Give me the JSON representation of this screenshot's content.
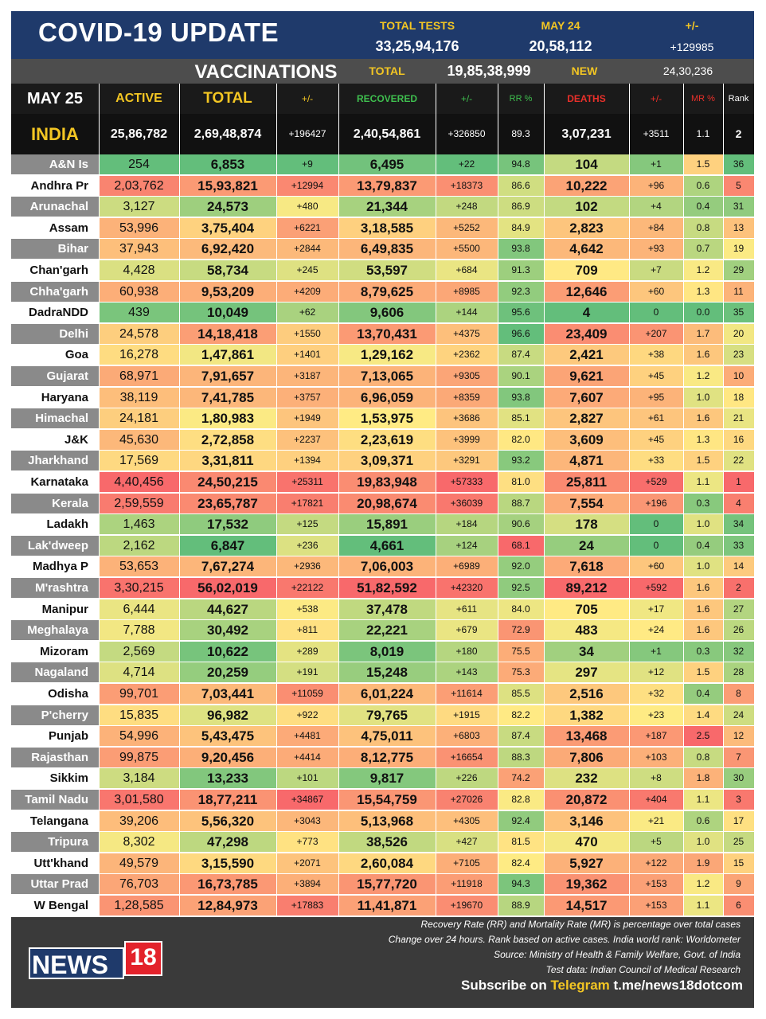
{
  "banner": {
    "title": "COVID-19 UPDATE",
    "total_tests_label": "TOTAL TESTS",
    "total_tests": "33,25,94,176",
    "day_label": "MAY 24",
    "day_value": "20,58,112",
    "change_label": "+/-",
    "change_value": "+129985"
  },
  "vaccinations": {
    "title": "VACCINATIONS",
    "total_label": "TOTAL",
    "total_value": "19,85,38,999",
    "new_label": "NEW",
    "new_value": "24,30,236"
  },
  "headers": {
    "date": "MAY 25",
    "active": "ACTIVE",
    "total": "TOTAL",
    "total_change": "+/-",
    "recovered": "RECOVERED",
    "recovered_change": "+/-",
    "rr": "RR %",
    "deaths": "DEATHS",
    "deaths_change": "+/-",
    "mr": "MR %",
    "rank": "Rank"
  },
  "india": {
    "name": "INDIA",
    "active": "25,86,782",
    "total": "2,69,48,874",
    "total_change": "+196427",
    "recovered": "2,40,54,861",
    "recovered_change": "+326850",
    "rr": "89.3",
    "deaths": "3,07,231",
    "deaths_change": "+3511",
    "mr": "1.1",
    "rank": "2"
  },
  "rows": [
    {
      "state": "A&N Is",
      "active": "254",
      "total": "6,853",
      "total_change": "+9",
      "recovered": "6,495",
      "recovered_change": "+22",
      "rr": "94.8",
      "deaths": "104",
      "deaths_change": "+1",
      "mr": "1.5",
      "rank": "36"
    },
    {
      "state": "Andhra Pr",
      "active": "2,03,762",
      "total": "15,93,821",
      "total_change": "+12994",
      "recovered": "13,79,837",
      "recovered_change": "+18373",
      "rr": "86.6",
      "deaths": "10,222",
      "deaths_change": "+96",
      "mr": "0.6",
      "rank": "5"
    },
    {
      "state": "Arunachal",
      "active": "3,127",
      "total": "24,573",
      "total_change": "+480",
      "recovered": "21,344",
      "recovered_change": "+248",
      "rr": "86.9",
      "deaths": "102",
      "deaths_change": "+4",
      "mr": "0.4",
      "rank": "31"
    },
    {
      "state": "Assam",
      "active": "53,996",
      "total": "3,75,404",
      "total_change": "+6221",
      "recovered": "3,18,585",
      "recovered_change": "+5252",
      "rr": "84.9",
      "deaths": "2,823",
      "deaths_change": "+84",
      "mr": "0.8",
      "rank": "13"
    },
    {
      "state": "Bihar",
      "active": "37,943",
      "total": "6,92,420",
      "total_change": "+2844",
      "recovered": "6,49,835",
      "recovered_change": "+5500",
      "rr": "93.8",
      "deaths": "4,642",
      "deaths_change": "+93",
      "mr": "0.7",
      "rank": "19"
    },
    {
      "state": "Chan'garh",
      "active": "4,428",
      "total": "58,734",
      "total_change": "+245",
      "recovered": "53,597",
      "recovered_change": "+684",
      "rr": "91.3",
      "deaths": "709",
      "deaths_change": "+7",
      "mr": "1.2",
      "rank": "29"
    },
    {
      "state": "Chha'garh",
      "active": "60,938",
      "total": "9,53,209",
      "total_change": "+4209",
      "recovered": "8,79,625",
      "recovered_change": "+8985",
      "rr": "92.3",
      "deaths": "12,646",
      "deaths_change": "+60",
      "mr": "1.3",
      "rank": "11"
    },
    {
      "state": "DadraNDD",
      "active": "439",
      "total": "10,049",
      "total_change": "+62",
      "recovered": "9,606",
      "recovered_change": "+144",
      "rr": "95.6",
      "deaths": "4",
      "deaths_change": "0",
      "mr": "0.0",
      "rank": "35"
    },
    {
      "state": "Delhi",
      "active": "24,578",
      "total": "14,18,418",
      "total_change": "+1550",
      "recovered": "13,70,431",
      "recovered_change": "+4375",
      "rr": "96.6",
      "deaths": "23,409",
      "deaths_change": "+207",
      "mr": "1.7",
      "rank": "20"
    },
    {
      "state": "Goa",
      "active": "16,278",
      "total": "1,47,861",
      "total_change": "+1401",
      "recovered": "1,29,162",
      "recovered_change": "+2362",
      "rr": "87.4",
      "deaths": "2,421",
      "deaths_change": "+38",
      "mr": "1.6",
      "rank": "23"
    },
    {
      "state": "Gujarat",
      "active": "68,971",
      "total": "7,91,657",
      "total_change": "+3187",
      "recovered": "7,13,065",
      "recovered_change": "+9305",
      "rr": "90.1",
      "deaths": "9,621",
      "deaths_change": "+45",
      "mr": "1.2",
      "rank": "10"
    },
    {
      "state": "Haryana",
      "active": "38,119",
      "total": "7,41,785",
      "total_change": "+3757",
      "recovered": "6,96,059",
      "recovered_change": "+8359",
      "rr": "93.8",
      "deaths": "7,607",
      "deaths_change": "+95",
      "mr": "1.0",
      "rank": "18"
    },
    {
      "state": "Himachal",
      "active": "24,181",
      "total": "1,80,983",
      "total_change": "+1949",
      "recovered": "1,53,975",
      "recovered_change": "+3686",
      "rr": "85.1",
      "deaths": "2,827",
      "deaths_change": "+61",
      "mr": "1.6",
      "rank": "21"
    },
    {
      "state": "J&K",
      "active": "45,630",
      "total": "2,72,858",
      "total_change": "+2237",
      "recovered": "2,23,619",
      "recovered_change": "+3999",
      "rr": "82.0",
      "deaths": "3,609",
      "deaths_change": "+45",
      "mr": "1.3",
      "rank": "16"
    },
    {
      "state": "Jharkhand",
      "active": "17,569",
      "total": "3,31,811",
      "total_change": "+1394",
      "recovered": "3,09,371",
      "recovered_change": "+3291",
      "rr": "93.2",
      "deaths": "4,871",
      "deaths_change": "+33",
      "mr": "1.5",
      "rank": "22"
    },
    {
      "state": "Karnataka",
      "active": "4,40,456",
      "total": "24,50,215",
      "total_change": "+25311",
      "recovered": "19,83,948",
      "recovered_change": "+57333",
      "rr": "81.0",
      "deaths": "25,811",
      "deaths_change": "+529",
      "mr": "1.1",
      "rank": "1"
    },
    {
      "state": "Kerala",
      "active": "2,59,559",
      "total": "23,65,787",
      "total_change": "+17821",
      "recovered": "20,98,674",
      "recovered_change": "+36039",
      "rr": "88.7",
      "deaths": "7,554",
      "deaths_change": "+196",
      "mr": "0.3",
      "rank": "4"
    },
    {
      "state": "Ladakh",
      "active": "1,463",
      "total": "17,532",
      "total_change": "+125",
      "recovered": "15,891",
      "recovered_change": "+184",
      "rr": "90.6",
      "deaths": "178",
      "deaths_change": "0",
      "mr": "1.0",
      "rank": "34"
    },
    {
      "state": "Lak'dweep",
      "active": "2,162",
      "total": "6,847",
      "total_change": "+236",
      "recovered": "4,661",
      "recovered_change": "+124",
      "rr": "68.1",
      "deaths": "24",
      "deaths_change": "0",
      "mr": "0.4",
      "rank": "33"
    },
    {
      "state": "Madhya P",
      "active": "53,653",
      "total": "7,67,274",
      "total_change": "+2936",
      "recovered": "7,06,003",
      "recovered_change": "+6989",
      "rr": "92.0",
      "deaths": "7,618",
      "deaths_change": "+60",
      "mr": "1.0",
      "rank": "14"
    },
    {
      "state": "M'rashtra",
      "active": "3,30,215",
      "total": "56,02,019",
      "total_change": "+22122",
      "recovered": "51,82,592",
      "recovered_change": "+42320",
      "rr": "92.5",
      "deaths": "89,212",
      "deaths_change": "+592",
      "mr": "1.6",
      "rank": "2"
    },
    {
      "state": "Manipur",
      "active": "6,444",
      "total": "44,627",
      "total_change": "+538",
      "recovered": "37,478",
      "recovered_change": "+611",
      "rr": "84.0",
      "deaths": "705",
      "deaths_change": "+17",
      "mr": "1.6",
      "rank": "27"
    },
    {
      "state": "Meghalaya",
      "active": "7,788",
      "total": "30,492",
      "total_change": "+811",
      "recovered": "22,221",
      "recovered_change": "+679",
      "rr": "72.9",
      "deaths": "483",
      "deaths_change": "+24",
      "mr": "1.6",
      "rank": "26"
    },
    {
      "state": "Mizoram",
      "active": "2,569",
      "total": "10,622",
      "total_change": "+289",
      "recovered": "8,019",
      "recovered_change": "+180",
      "rr": "75.5",
      "deaths": "34",
      "deaths_change": "+1",
      "mr": "0.3",
      "rank": "32"
    },
    {
      "state": "Nagaland",
      "active": "4,714",
      "total": "20,259",
      "total_change": "+191",
      "recovered": "15,248",
      "recovered_change": "+143",
      "rr": "75.3",
      "deaths": "297",
      "deaths_change": "+12",
      "mr": "1.5",
      "rank": "28"
    },
    {
      "state": "Odisha",
      "active": "99,701",
      "total": "7,03,441",
      "total_change": "+11059",
      "recovered": "6,01,224",
      "recovered_change": "+11614",
      "rr": "85.5",
      "deaths": "2,516",
      "deaths_change": "+32",
      "mr": "0.4",
      "rank": "8"
    },
    {
      "state": "P'cherry",
      "active": "15,835",
      "total": "96,982",
      "total_change": "+922",
      "recovered": "79,765",
      "recovered_change": "+1915",
      "rr": "82.2",
      "deaths": "1,382",
      "deaths_change": "+23",
      "mr": "1.4",
      "rank": "24"
    },
    {
      "state": "Punjab",
      "active": "54,996",
      "total": "5,43,475",
      "total_change": "+4481",
      "recovered": "4,75,011",
      "recovered_change": "+6803",
      "rr": "87.4",
      "deaths": "13,468",
      "deaths_change": "+187",
      "mr": "2.5",
      "rank": "12"
    },
    {
      "state": "Rajasthan",
      "active": "99,875",
      "total": "9,20,456",
      "total_change": "+4414",
      "recovered": "8,12,775",
      "recovered_change": "+16654",
      "rr": "88.3",
      "deaths": "7,806",
      "deaths_change": "+103",
      "mr": "0.8",
      "rank": "7"
    },
    {
      "state": "Sikkim",
      "active": "3,184",
      "total": "13,233",
      "total_change": "+101",
      "recovered": "9,817",
      "recovered_change": "+226",
      "rr": "74.2",
      "deaths": "232",
      "deaths_change": "+8",
      "mr": "1.8",
      "rank": "30"
    },
    {
      "state": "Tamil Nadu",
      "active": "3,01,580",
      "total": "18,77,211",
      "total_change": "+34867",
      "recovered": "15,54,759",
      "recovered_change": "+27026",
      "rr": "82.8",
      "deaths": "20,872",
      "deaths_change": "+404",
      "mr": "1.1",
      "rank": "3"
    },
    {
      "state": "Telangana",
      "active": "39,206",
      "total": "5,56,320",
      "total_change": "+3043",
      "recovered": "5,13,968",
      "recovered_change": "+4305",
      "rr": "92.4",
      "deaths": "3,146",
      "deaths_change": "+21",
      "mr": "0.6",
      "rank": "17"
    },
    {
      "state": "Tripura",
      "active": "8,302",
      "total": "47,298",
      "total_change": "+773",
      "recovered": "38,526",
      "recovered_change": "+427",
      "rr": "81.5",
      "deaths": "470",
      "deaths_change": "+5",
      "mr": "1.0",
      "rank": "25"
    },
    {
      "state": "Utt'khand",
      "active": "49,579",
      "total": "3,15,590",
      "total_change": "+2071",
      "recovered": "2,60,084",
      "recovered_change": "+7105",
      "rr": "82.4",
      "deaths": "5,927",
      "deaths_change": "+122",
      "mr": "1.9",
      "rank": "15"
    },
    {
      "state": "Uttar Prad",
      "active": "76,703",
      "total": "16,73,785",
      "total_change": "+3894",
      "recovered": "15,77,720",
      "recovered_change": "+11918",
      "rr": "94.3",
      "deaths": "19,362",
      "deaths_change": "+153",
      "mr": "1.2",
      "rank": "9"
    },
    {
      "state": "W Bengal",
      "active": "1,28,585",
      "total": "12,84,973",
      "total_change": "+17883",
      "recovered": "11,41,871",
      "recovered_change": "+19670",
      "rr": "88.9",
      "deaths": "14,517",
      "deaths_change": "+153",
      "mr": "1.1",
      "rank": "6"
    }
  ],
  "footer": {
    "logo_text": "NEWS",
    "logo_number": "18",
    "note1": "Recovery Rate (RR) and Mortality Rate (MR) is percentage over total cases",
    "note2": "Change over 24 hours. Rank based on active cases. India world rank: Worldometer",
    "note3": "Source: Ministry of Health & Family Welfare, Govt. of India",
    "note4": "Test data: Indian Council of Medical Research",
    "subscribe_prefix": "Subscribe on",
    "subscribe_channel": "Telegram",
    "subscribe_link": "t.me/news18dotcom"
  },
  "colors": {
    "banner": "#1f3a6b",
    "heading_yellow": "#f3c623",
    "recovered_green": "#3fbf4f",
    "deaths_red": "#e8302a",
    "scale_low": "#63be7b",
    "scale_mid": "#ffeb84",
    "scale_high": "#f8696b",
    "logo_red": "#e3222b"
  }
}
